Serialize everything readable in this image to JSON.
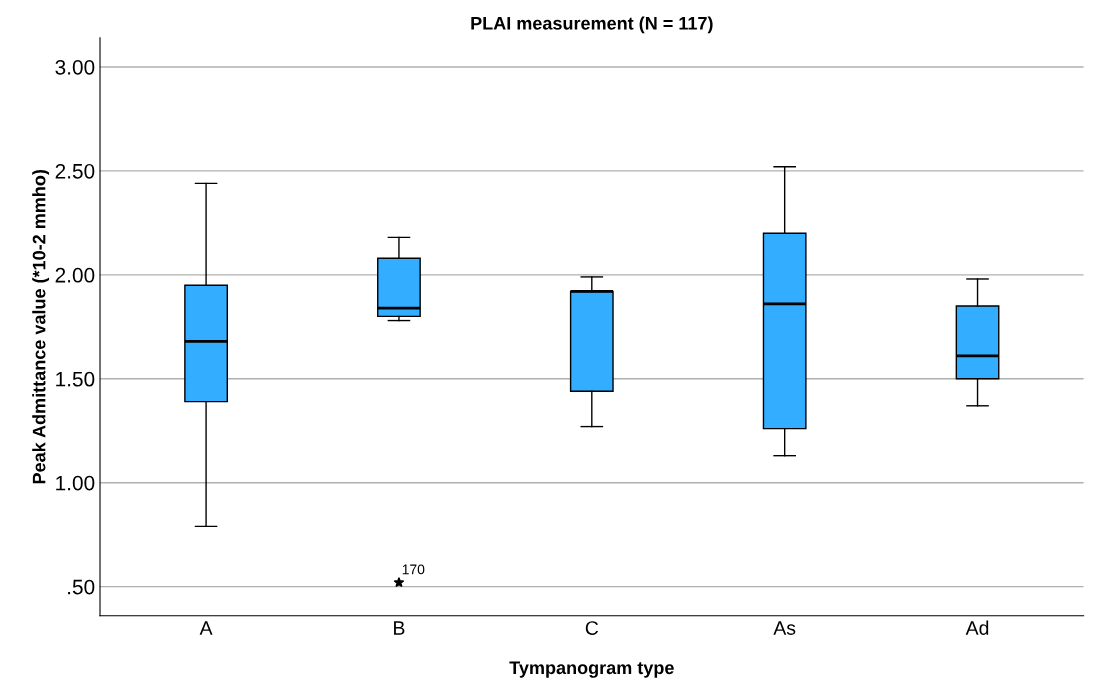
{
  "chart_data": {
    "type": "box",
    "title": "PLAI measurement (N = 117)",
    "xlabel": "Tympanogram type",
    "ylabel": "Peak Admittance value (*10-2 mmho)",
    "categories": [
      "A",
      "B",
      "C",
      "As",
      "Ad"
    ],
    "color": "#33adff",
    "boxes": [
      {
        "low": 0.79,
        "q1": 1.39,
        "median": 1.68,
        "q3": 1.95,
        "high": 2.44
      },
      {
        "low": 1.78,
        "q1": 1.8,
        "median": 1.84,
        "q3": 2.08,
        "high": 2.18,
        "outliers": [
          0.52
        ]
      },
      {
        "low": 1.27,
        "q1": 1.44,
        "median": 1.92,
        "q3": 1.92,
        "high": 1.99
      },
      {
        "low": 1.13,
        "q1": 1.26,
        "median": 1.86,
        "q3": 2.2,
        "high": 2.52
      },
      {
        "low": 1.37,
        "q1": 1.5,
        "median": 1.61,
        "q3": 1.85,
        "high": 1.98
      }
    ],
    "annotations": [
      "170"
    ],
    "ylim": [
      0.36,
      3.14
    ],
    "yticks": [
      {
        "value": 0.5,
        "label": ".50"
      },
      {
        "value": 1.0,
        "label": "1.00"
      },
      {
        "value": 1.5,
        "label": "1.50"
      },
      {
        "value": 2.0,
        "label": "2.00"
      },
      {
        "value": 2.5,
        "label": "2.50"
      },
      {
        "value": 3.0,
        "label": "3.00"
      }
    ],
    "grid": "y",
    "marker": "star"
  }
}
